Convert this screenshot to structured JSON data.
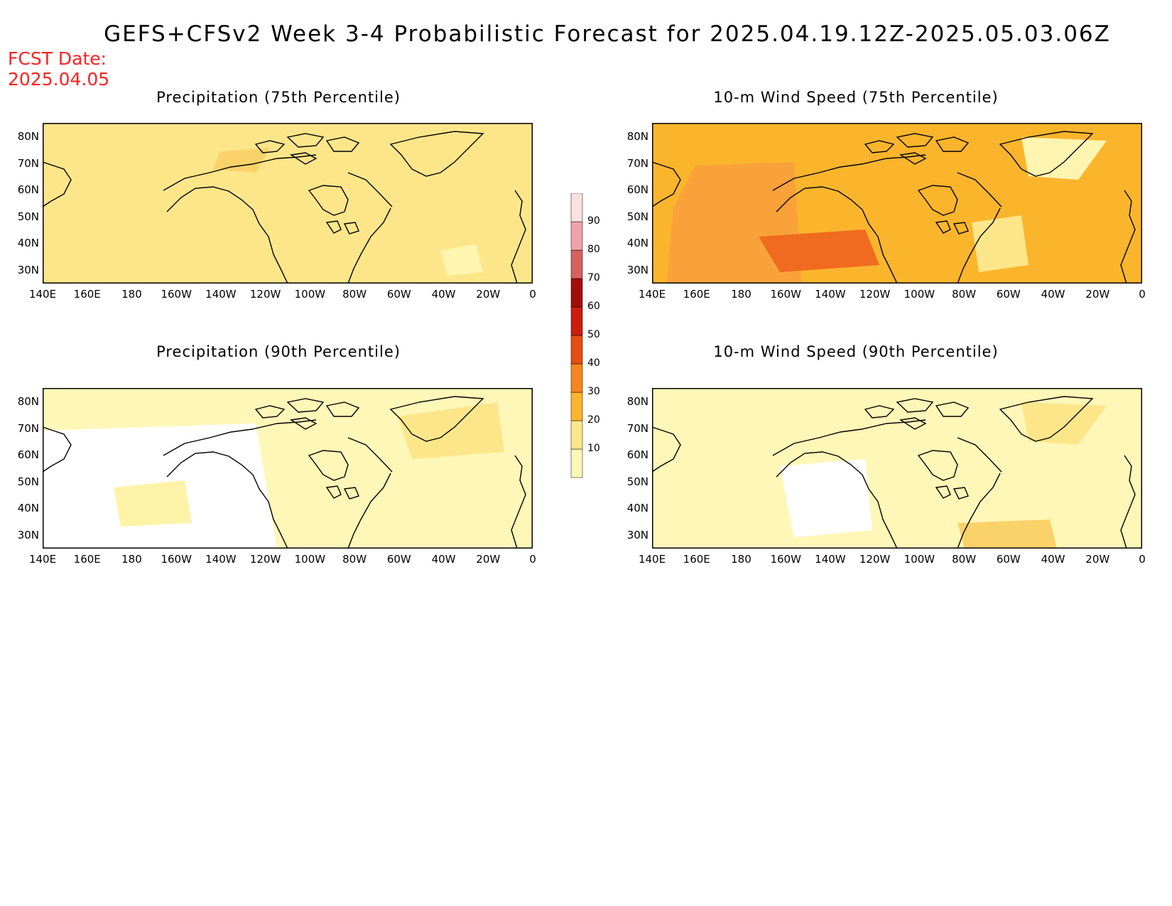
{
  "title": "GEFS+CFSv2 Week 3-4 Probabilistic Forecast for 2025.04.19.12Z-2025.05.03.06Z",
  "fcst_date": {
    "label": "FCST Date:",
    "value": "2025.04.05"
  },
  "lat_labels": [
    "80N",
    "70N",
    "60N",
    "50N",
    "40N",
    "30N"
  ],
  "lon_labels": [
    "140E",
    "160E",
    "180",
    "160W",
    "140W",
    "120W",
    "100W",
    "80W",
    "60W",
    "40W",
    "20W",
    "0"
  ],
  "panels": [
    {
      "title": "Precipitation (75th Percentile)",
      "base_level": "20",
      "patches": [
        "#fde68a",
        "#fbd26a",
        "#fff5b0"
      ]
    },
    {
      "title": "10-m Wind Speed (75th Percentile)",
      "base_level": "30",
      "patches": [
        "#f9a23a",
        "#fde68a",
        "#f06a1f",
        "#fff5b0"
      ]
    },
    {
      "title": "Precipitation (90th Percentile)",
      "base_level": "10",
      "patches": [
        "#ffffff",
        "#fff3a8",
        "#fde68a"
      ]
    },
    {
      "title": "10-m Wind Speed (90th Percentile)",
      "base_level": "10",
      "patches": [
        "#ffffff",
        "#fde68a",
        "#fbd26a"
      ]
    }
  ],
  "colorbar": {
    "levels": [
      "10",
      "20",
      "30",
      "40",
      "50",
      "60",
      "70",
      "80",
      "90"
    ],
    "colors": [
      "#fff7b8",
      "#fde68a",
      "#fbb52c",
      "#f6851f",
      "#e84e12",
      "#cc1d0e",
      "#a30d0a",
      "#d86060",
      "#f0a3a8",
      "#fde0e0"
    ]
  }
}
